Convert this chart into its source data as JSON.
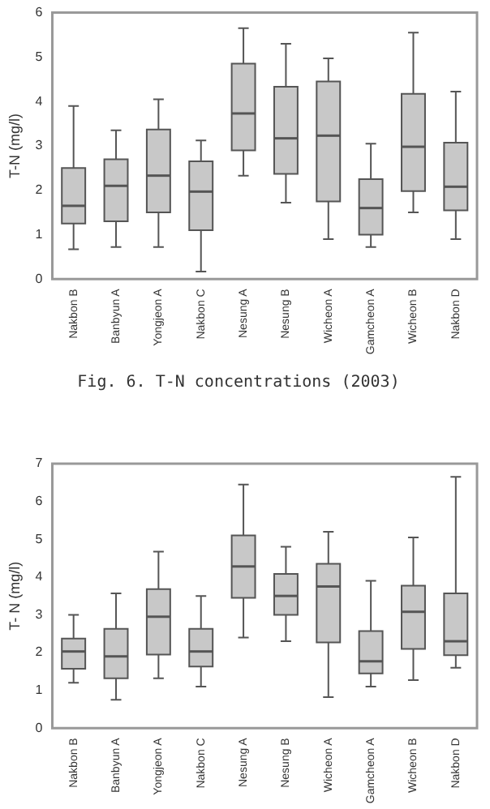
{
  "chart_data": [
    {
      "type": "box",
      "title": "Fig. 6. T-N concentrations (2003)",
      "ylabel": "T-N (mg/l)",
      "categories": [
        "Nakbon B",
        "Banbyun A",
        "Yongjeon A",
        "Nakbon C",
        "Nesung A",
        "Nesung B",
        "Wicheon A",
        "Gamcheon A",
        "Wicheon B",
        "Nakbon D"
      ],
      "color": "#c8c8c8",
      "ylim": [
        0,
        6
      ],
      "yticks": [
        0,
        1,
        2,
        3,
        4,
        5,
        6
      ],
      "grid": false,
      "legend": false,
      "boxes": [
        {
          "low": 0.67,
          "q1": 1.25,
          "median": 1.65,
          "q3": 2.5,
          "high": 3.9
        },
        {
          "low": 0.72,
          "q1": 1.3,
          "median": 2.1,
          "q3": 2.7,
          "high": 3.35
        },
        {
          "low": 0.72,
          "q1": 1.5,
          "median": 2.33,
          "q3": 3.37,
          "high": 4.05
        },
        {
          "low": 0.17,
          "q1": 1.1,
          "median": 1.97,
          "q3": 2.65,
          "high": 3.12
        },
        {
          "low": 2.33,
          "q1": 2.9,
          "median": 3.73,
          "q3": 4.85,
          "high": 5.65
        },
        {
          "low": 1.72,
          "q1": 2.37,
          "median": 3.17,
          "q3": 4.33,
          "high": 5.3
        },
        {
          "low": 0.9,
          "q1": 1.75,
          "median": 3.23,
          "q3": 4.45,
          "high": 4.97
        },
        {
          "low": 0.72,
          "q1": 1.0,
          "median": 1.6,
          "q3": 2.25,
          "high": 3.05
        },
        {
          "low": 1.5,
          "q1": 1.98,
          "median": 2.98,
          "q3": 4.17,
          "high": 5.55
        },
        {
          "low": 0.9,
          "q1": 1.55,
          "median": 2.08,
          "q3": 3.07,
          "high": 4.22
        }
      ]
    },
    {
      "type": "box",
      "ylabel": "T- N (mg/l)",
      "categories": [
        "Nakbon B",
        "Banbyun A",
        "Yongjeon A",
        "Nakbon C",
        "Nesung A",
        "Nesung B",
        "Wicheon A",
        "Gamcheon A",
        "Wicheon B",
        "Nakbon D"
      ],
      "color": "#c8c8c8",
      "ylim": [
        0,
        7
      ],
      "yticks": [
        0,
        1,
        2,
        3,
        4,
        5,
        6,
        7
      ],
      "grid": false,
      "legend": false,
      "boxes": [
        {
          "low": 1.2,
          "q1": 1.57,
          "median": 2.03,
          "q3": 2.37,
          "high": 3.0
        },
        {
          "low": 0.75,
          "q1": 1.32,
          "median": 1.9,
          "q3": 2.63,
          "high": 3.57
        },
        {
          "low": 1.32,
          "q1": 1.95,
          "median": 2.95,
          "q3": 3.68,
          "high": 4.67
        },
        {
          "low": 1.1,
          "q1": 1.63,
          "median": 2.03,
          "q3": 2.63,
          "high": 3.5
        },
        {
          "low": 2.4,
          "q1": 3.45,
          "median": 4.28,
          "q3": 5.1,
          "high": 6.45
        },
        {
          "low": 2.3,
          "q1": 3.0,
          "median": 3.5,
          "q3": 4.08,
          "high": 4.8
        },
        {
          "low": 0.82,
          "q1": 2.27,
          "median": 3.75,
          "q3": 4.35,
          "high": 5.2
        },
        {
          "low": 1.1,
          "q1": 1.45,
          "median": 1.77,
          "q3": 2.57,
          "high": 3.9
        },
        {
          "low": 1.27,
          "q1": 2.1,
          "median": 3.08,
          "q3": 3.77,
          "high": 5.05
        },
        {
          "low": 1.6,
          "q1": 1.93,
          "median": 2.3,
          "q3": 3.57,
          "high": 6.65
        }
      ]
    }
  ]
}
